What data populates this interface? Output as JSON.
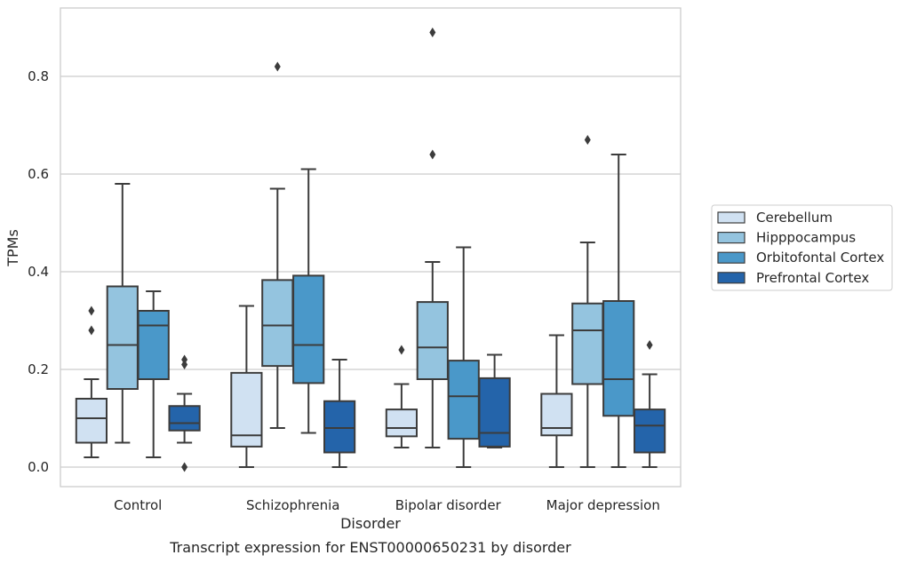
{
  "chart_data": {
    "type": "boxplot",
    "caption": "Transcript expression for ENST00000650231 by disorder",
    "xlabel": "Disorder",
    "ylabel": "TPMs",
    "ylim": [
      -0.04,
      0.94
    ],
    "yticks": [
      0.0,
      0.2,
      0.4,
      0.6,
      0.8
    ],
    "ytick_labels": [
      "0.0",
      "0.2",
      "0.4",
      "0.6",
      "0.8"
    ],
    "grid": "horizontal",
    "legend_position": "right",
    "categories": [
      "Control",
      "Schizophrenia",
      "Bipolar disorder",
      "Major depression"
    ],
    "series": [
      {
        "name": "Cerebellum",
        "color": "#d0e1f2",
        "boxes": [
          {
            "whislo": 0.02,
            "q1": 0.05,
            "med": 0.1,
            "q3": 0.14,
            "whishi": 0.18,
            "fliers": [
              0.28,
              0.32
            ]
          },
          {
            "whislo": 0.0,
            "q1": 0.042,
            "med": 0.065,
            "q3": 0.193,
            "whishi": 0.33,
            "fliers": []
          },
          {
            "whislo": 0.04,
            "q1": 0.063,
            "med": 0.08,
            "q3": 0.118,
            "whishi": 0.17,
            "fliers": [
              0.24
            ]
          },
          {
            "whislo": 0.0,
            "q1": 0.065,
            "med": 0.08,
            "q3": 0.15,
            "whishi": 0.27,
            "fliers": []
          }
        ]
      },
      {
        "name": "Hipppocampus",
        "color": "#94c4df",
        "boxes": [
          {
            "whislo": 0.05,
            "q1": 0.16,
            "med": 0.25,
            "q3": 0.37,
            "whishi": 0.58,
            "fliers": []
          },
          {
            "whislo": 0.08,
            "q1": 0.207,
            "med": 0.29,
            "q3": 0.383,
            "whishi": 0.57,
            "fliers": [
              0.82
            ]
          },
          {
            "whislo": 0.04,
            "q1": 0.18,
            "med": 0.245,
            "q3": 0.338,
            "whishi": 0.42,
            "fliers": [
              0.64,
              0.89
            ]
          },
          {
            "whislo": 0.0,
            "q1": 0.17,
            "med": 0.28,
            "q3": 0.335,
            "whishi": 0.46,
            "fliers": [
              0.67
            ]
          }
        ]
      },
      {
        "name": "Orbitofontal Cortex",
        "color": "#4a98c9",
        "boxes": [
          {
            "whislo": 0.02,
            "q1": 0.18,
            "med": 0.29,
            "q3": 0.32,
            "whishi": 0.36,
            "fliers": []
          },
          {
            "whislo": 0.07,
            "q1": 0.172,
            "med": 0.25,
            "q3": 0.392,
            "whishi": 0.61,
            "fliers": []
          },
          {
            "whislo": 0.0,
            "q1": 0.058,
            "med": 0.145,
            "q3": 0.218,
            "whishi": 0.45,
            "fliers": []
          },
          {
            "whislo": 0.0,
            "q1": 0.105,
            "med": 0.18,
            "q3": 0.34,
            "whishi": 0.64,
            "fliers": []
          }
        ]
      },
      {
        "name": "Prefrontal Cortex",
        "color": "#2464aa",
        "boxes": [
          {
            "whislo": 0.05,
            "q1": 0.075,
            "med": 0.09,
            "q3": 0.125,
            "whishi": 0.15,
            "fliers": [
              0.0,
              0.21,
              0.22
            ]
          },
          {
            "whislo": 0.0,
            "q1": 0.03,
            "med": 0.08,
            "q3": 0.135,
            "whishi": 0.22,
            "fliers": []
          },
          {
            "whislo": 0.04,
            "q1": 0.042,
            "med": 0.07,
            "q3": 0.182,
            "whishi": 0.23,
            "fliers": []
          },
          {
            "whislo": 0.0,
            "q1": 0.03,
            "med": 0.085,
            "q3": 0.118,
            "whishi": 0.19,
            "fliers": [
              0.25
            ]
          }
        ]
      }
    ]
  }
}
